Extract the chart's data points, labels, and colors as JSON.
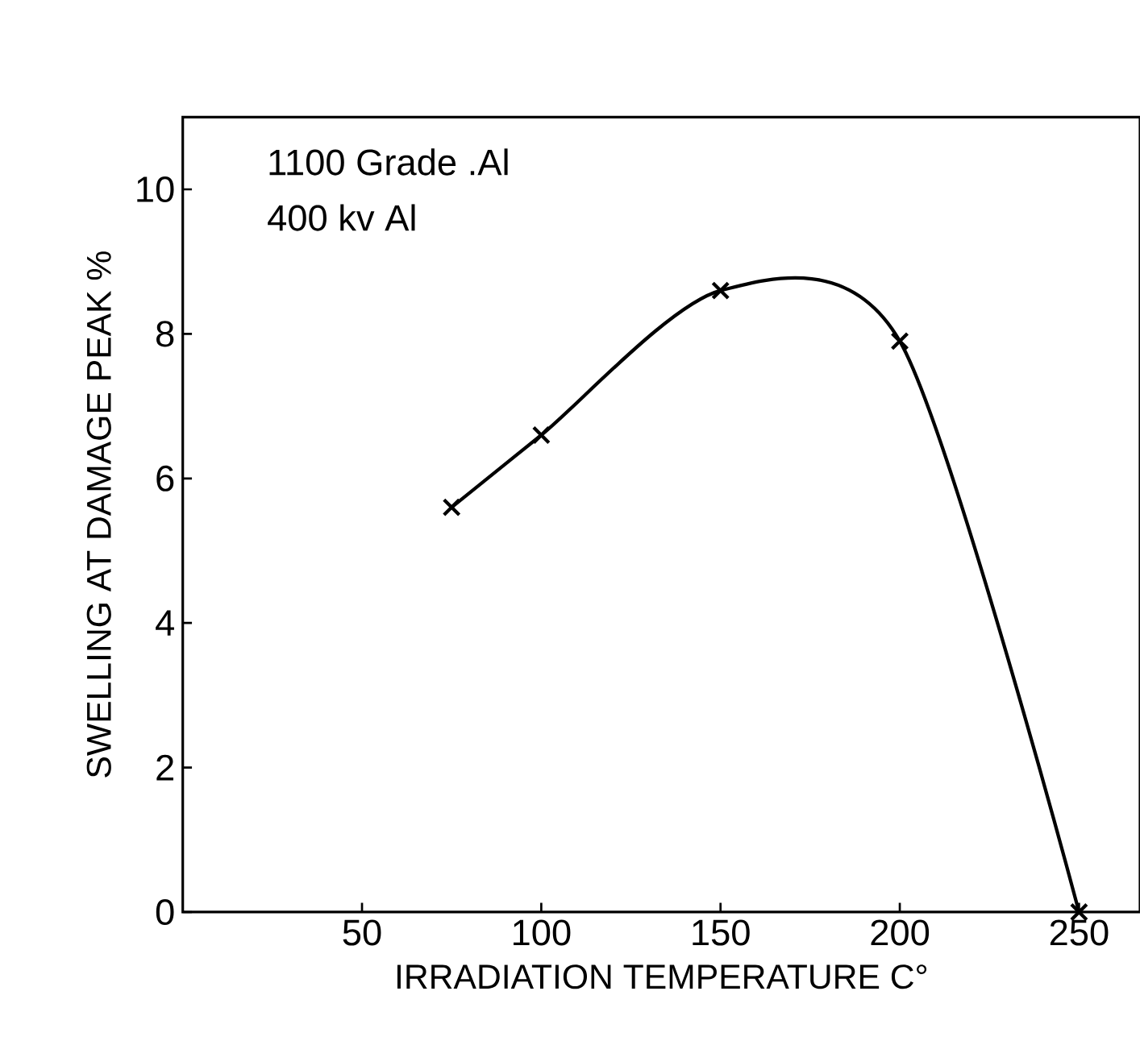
{
  "chart_data": {
    "type": "line",
    "xlabel": "IRRADIATION  TEMPERATURE   C°",
    "ylabel": "SWELLING  AT DAMAGE PEAK  %",
    "annotations": [
      "1100  Grade  .Al",
      "400  kv  Al"
    ],
    "x": [
      75,
      100,
      150,
      200,
      250
    ],
    "series": [
      {
        "color": "#000000",
        "values": [
          5.6,
          6.6,
          8.6,
          7.9,
          0
        ]
      }
    ],
    "xlim": [
      0,
      267
    ],
    "xticks": [
      50,
      100,
      150,
      200,
      250
    ],
    "ylim": [
      0,
      11
    ],
    "yticks": [
      0,
      2,
      4,
      6,
      8,
      10
    ],
    "marker": "cross",
    "line_style": "solid",
    "grid": false
  }
}
